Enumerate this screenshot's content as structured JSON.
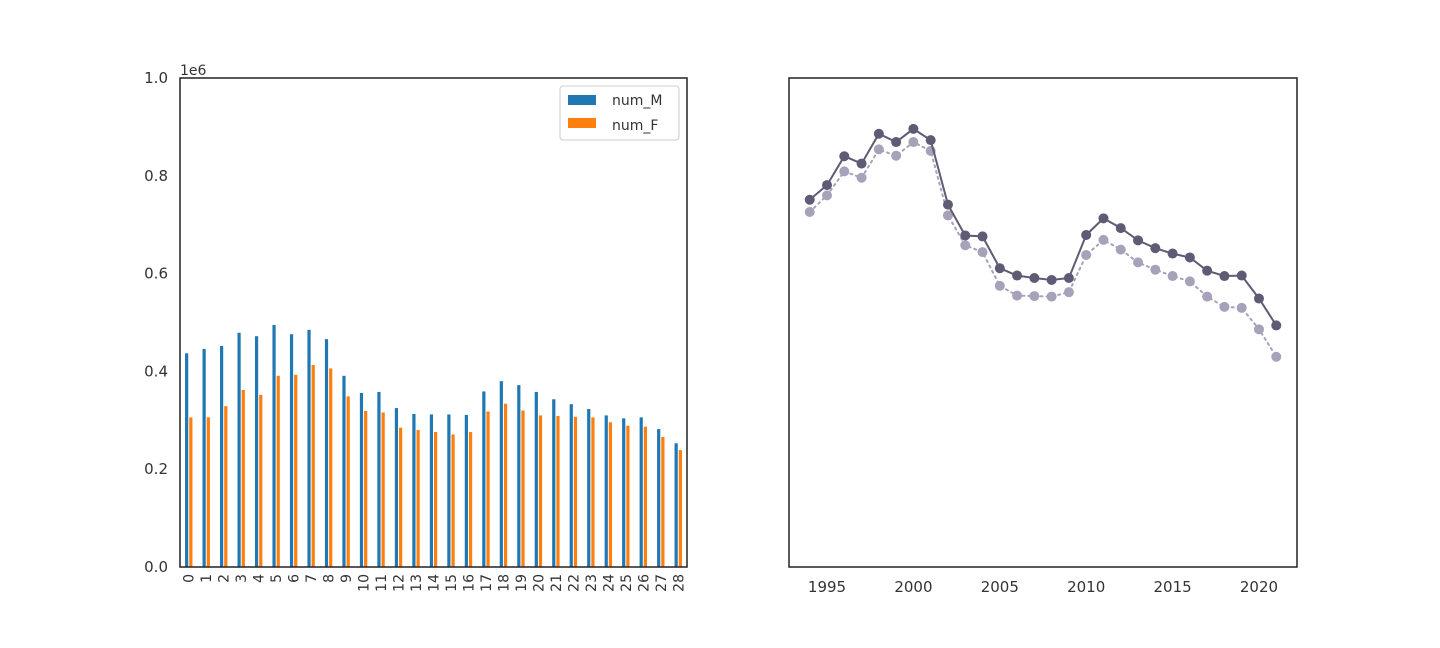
{
  "chart_data": [
    {
      "type": "bar",
      "categories": [
        "0",
        "1",
        "2",
        "3",
        "4",
        "5",
        "6",
        "7",
        "8",
        "9",
        "10",
        "11",
        "12",
        "13",
        "14",
        "15",
        "16",
        "17",
        "18",
        "19",
        "20",
        "21",
        "22",
        "23",
        "24",
        "25",
        "26",
        "27",
        "28"
      ],
      "series": [
        {
          "name": "num_M",
          "color": "#1f77b4",
          "values": [
            437000,
            446000,
            452000,
            479000,
            472000,
            495000,
            476000,
            485000,
            466000,
            391000,
            356000,
            358000,
            325000,
            313000,
            312000,
            312000,
            311000,
            359000,
            380000,
            372000,
            358000,
            343000,
            333000,
            323000,
            310000,
            304000,
            306000,
            282000,
            253000
          ]
        },
        {
          "name": "num_F",
          "color": "#ff7f0e",
          "values": [
            306000,
            306000,
            329000,
            362000,
            352000,
            391000,
            393000,
            413000,
            406000,
            349000,
            319000,
            316000,
            285000,
            280000,
            276000,
            271000,
            276000,
            318000,
            334000,
            320000,
            310000,
            309000,
            307000,
            306000,
            296000,
            289000,
            287000,
            266000,
            239000
          ]
        }
      ],
      "ylim": [
        0,
        1000000
      ],
      "yticks": [
        "0.0",
        "0.2",
        "0.4",
        "0.6",
        "0.8",
        "1.0"
      ],
      "offset_label": "1e6",
      "legend_position": "top-right"
    },
    {
      "type": "line",
      "x": [
        1994,
        1995,
        1996,
        1997,
        1998,
        1999,
        2000,
        2001,
        2002,
        2003,
        2004,
        2005,
        2006,
        2007,
        2008,
        2009,
        2010,
        2011,
        2012,
        2013,
        2014,
        2015,
        2016,
        2017,
        2018,
        2019,
        2020,
        2021
      ],
      "series": [
        {
          "color": "#605a74",
          "style": "solid",
          "values": [
            751000,
            781000,
            840000,
            825000,
            886000,
            869000,
            896000,
            873000,
            741000,
            678000,
            676000,
            611000,
            596000,
            591000,
            587000,
            591000,
            679000,
            713000,
            693000,
            668000,
            652000,
            641000,
            633000,
            606000,
            595000,
            596000,
            549000,
            494000
          ]
        },
        {
          "color": "#a8a1ba",
          "style": "dotted",
          "values": [
            726000,
            760000,
            809000,
            796000,
            854000,
            841000,
            869000,
            851000,
            719000,
            658000,
            644000,
            575000,
            555000,
            554000,
            553000,
            562000,
            638000,
            669000,
            649000,
            623000,
            608000,
            595000,
            584000,
            553000,
            532000,
            530000,
            486000,
            430000
          ]
        }
      ],
      "xticks": [
        "1995",
        "2000",
        "2005",
        "2010",
        "2015",
        "2020"
      ],
      "ylim": [
        0,
        1000000
      ]
    }
  ]
}
